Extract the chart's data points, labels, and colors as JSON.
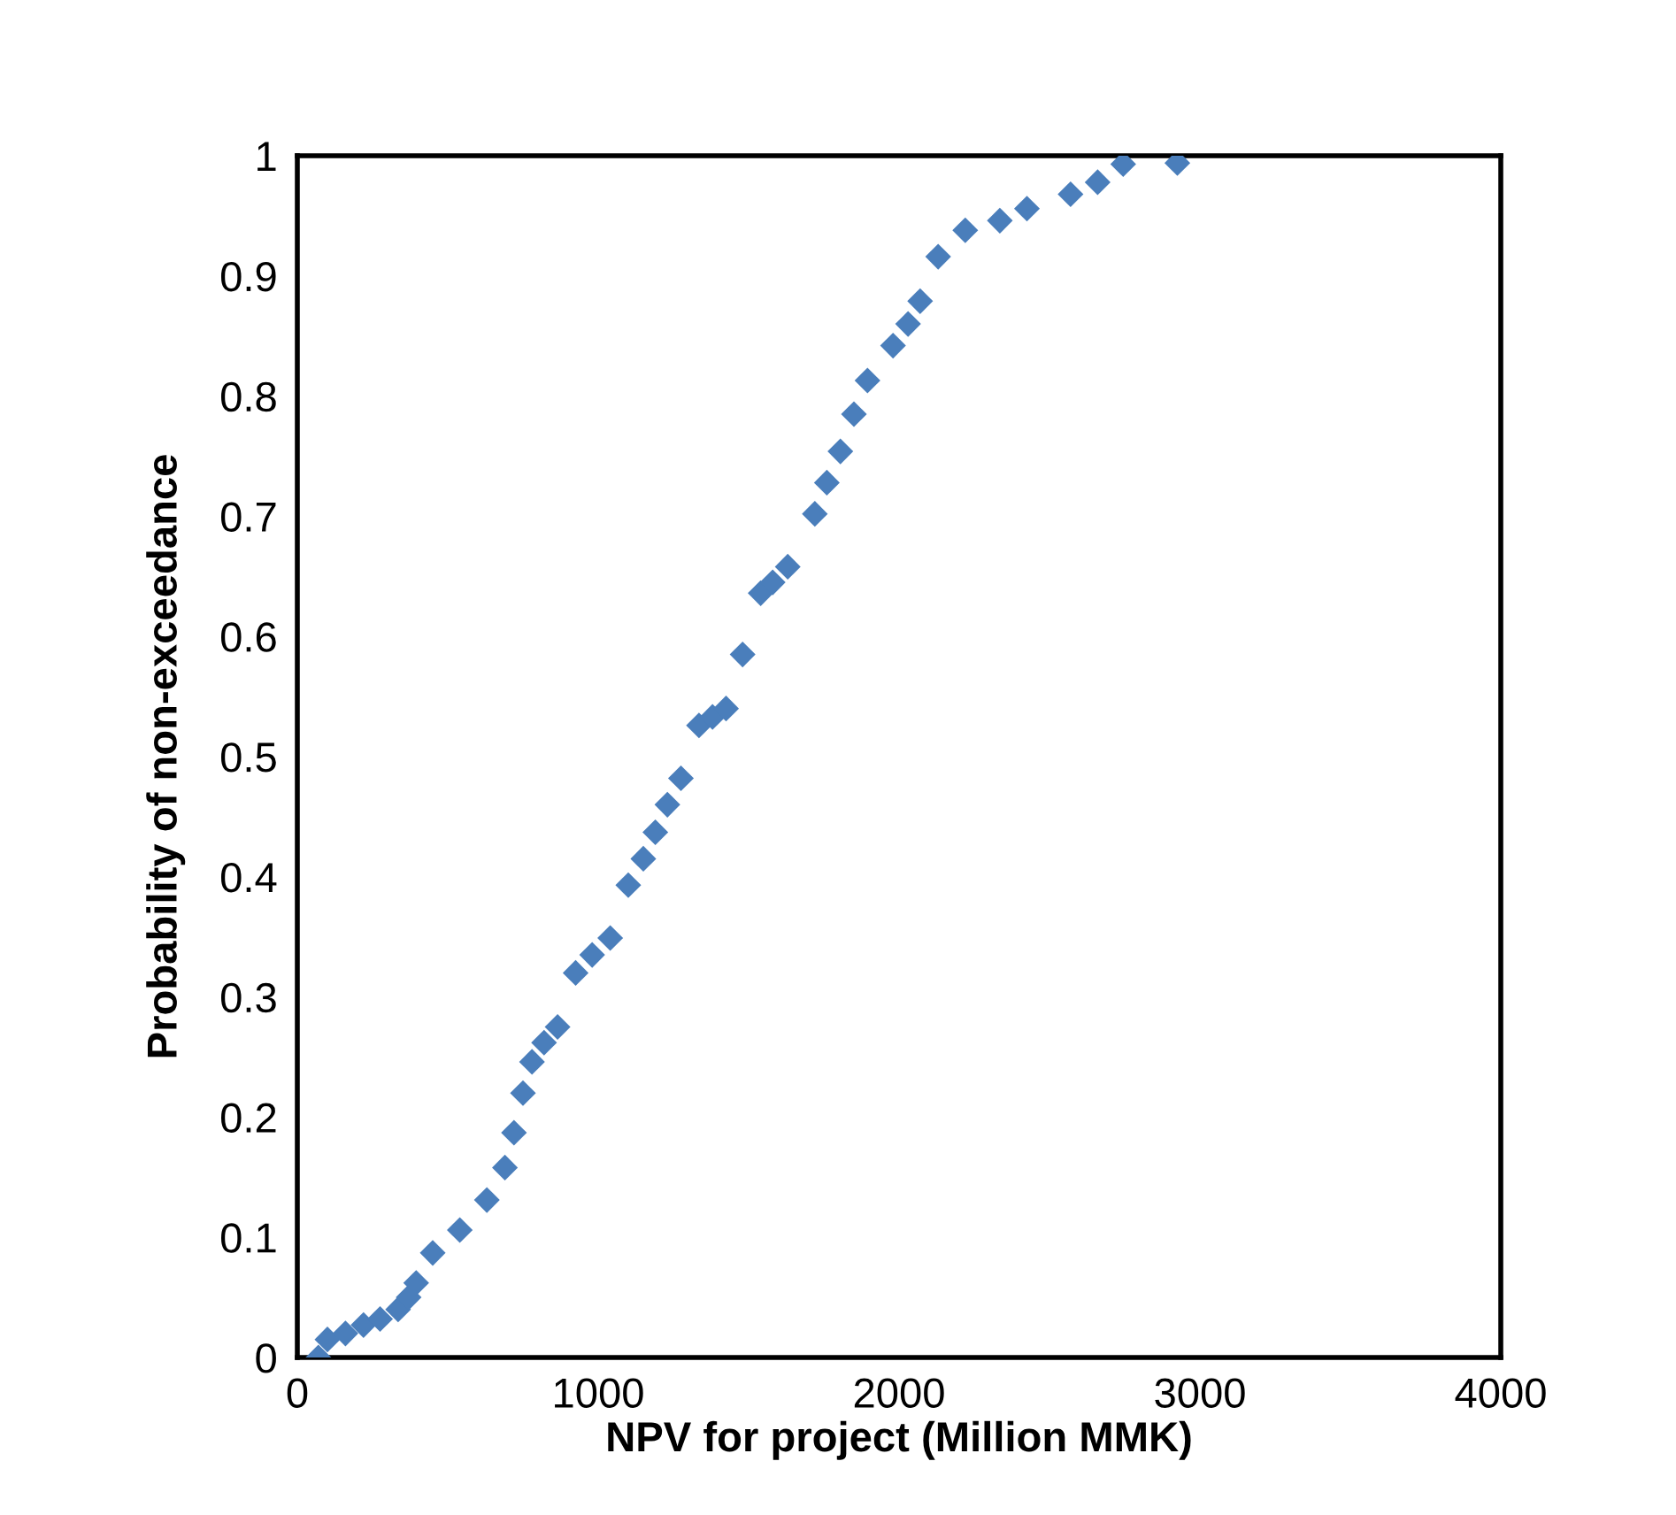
{
  "chart_data": {
    "type": "scatter",
    "xlabel": "NPV for project (Million MMK)",
    "ylabel": "Probability of non-exceedance",
    "xlim": [
      0,
      4000
    ],
    "xticks": [
      0,
      1000,
      2000,
      3000,
      4000
    ],
    "ylim": [
      0,
      1
    ],
    "yticks": [
      0,
      0.1,
      0.2,
      0.3,
      0.4,
      0.5,
      0.6,
      0.7,
      0.8,
      0.9,
      1
    ],
    "grid": false,
    "marker": "diamond",
    "series": [
      {
        "color": "#4a7ebb",
        "x": [
          70,
          100,
          160,
          220,
          275,
          335,
          370,
          395,
          450,
          540,
          630,
          690,
          720,
          750,
          780,
          820,
          865,
          925,
          980,
          1040,
          1100,
          1150,
          1190,
          1230,
          1275,
          1335,
          1380,
          1425,
          1480,
          1540,
          1580,
          1630,
          1720,
          1760,
          1805,
          1850,
          1895,
          1980,
          2030,
          2070,
          2130,
          2220,
          2335,
          2425,
          2570,
          2660,
          2745,
          2925
        ],
        "values": [
          0.0,
          0.015,
          0.02,
          0.027,
          0.032,
          0.04,
          0.05,
          0.062,
          0.087,
          0.106,
          0.131,
          0.158,
          0.187,
          0.22,
          0.246,
          0.262,
          0.275,
          0.32,
          0.335,
          0.349,
          0.393,
          0.415,
          0.437,
          0.46,
          0.482,
          0.526,
          0.533,
          0.54,
          0.585,
          0.636,
          0.645,
          0.658,
          0.702,
          0.728,
          0.754,
          0.785,
          0.813,
          0.842,
          0.86,
          0.879,
          0.916,
          0.938,
          0.946,
          0.956,
          0.968,
          0.978,
          0.993,
          0.994
        ]
      }
    ]
  }
}
